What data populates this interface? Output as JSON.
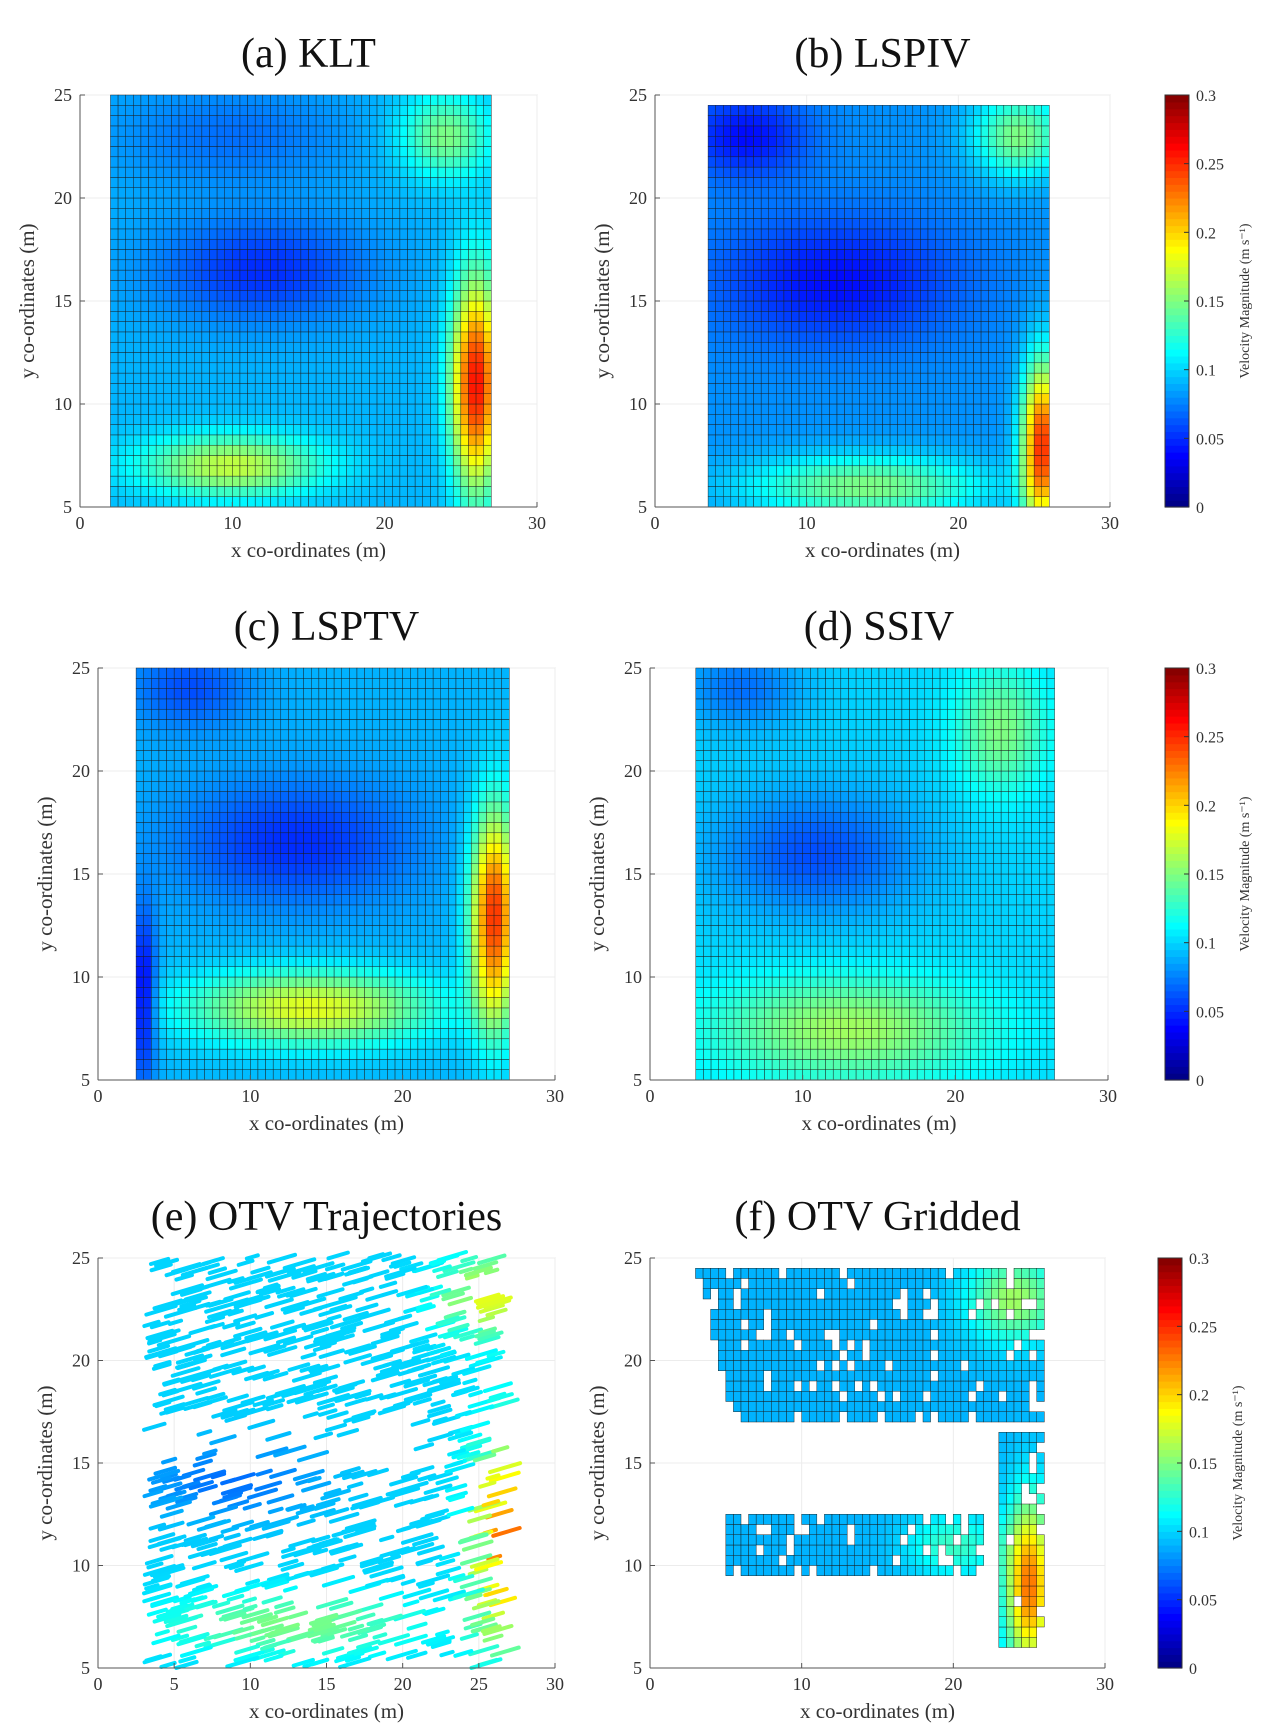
{
  "chart_data": {
    "type": "heatmap",
    "common": {
      "xlabel": "x co-ordinates (m)",
      "ylabel": "y co-ordinates (m)",
      "xlim": [
        0,
        30
      ],
      "ylim": [
        5,
        25
      ],
      "colorbar": {
        "label": "Velocity Magnitude (m s⁻¹)",
        "range": [
          0,
          0.3
        ],
        "ticks": [
          0,
          0.05,
          0.1,
          0.15,
          0.2,
          0.25,
          0.3
        ],
        "tick_labels": [
          "0",
          "0.05",
          "0.1",
          "0.15",
          "0.2",
          "0.25",
          "0.3"
        ],
        "colormap": "jet"
      }
    },
    "panels": [
      {
        "id": "a",
        "title": "(a) KLT",
        "type": "heatmap",
        "extent": {
          "x": [
            2,
            27
          ],
          "y": [
            5,
            25
          ]
        },
        "xticks": [
          0,
          10,
          20,
          30
        ],
        "xtick_labels": [
          "0",
          "10",
          "20",
          "30"
        ],
        "yticks": [
          5,
          10,
          15,
          20,
          25
        ],
        "ytick_labels": [
          "5",
          "10",
          "15",
          "20",
          "25"
        ],
        "base": 0.09,
        "features": [
          {
            "x": 12,
            "y": 16.5,
            "sx": 7,
            "sy": 2.5,
            "v": -0.04
          },
          {
            "x": 10,
            "y": 23,
            "sx": 8,
            "sy": 2.5,
            "v": -0.02
          },
          {
            "x": 26,
            "y": 11,
            "sx": 1.6,
            "sy": 5,
            "v": 0.17
          },
          {
            "x": 10,
            "y": 7,
            "sx": 6,
            "sy": 1.5,
            "v": 0.08
          },
          {
            "x": 24,
            "y": 23,
            "sx": 3,
            "sy": 2,
            "v": 0.06
          }
        ]
      },
      {
        "id": "b",
        "title": "(b) LSPIV",
        "type": "heatmap",
        "extent": {
          "x": [
            3.5,
            26
          ],
          "y": [
            5,
            24.3
          ]
        },
        "xticks": [
          0,
          10,
          20,
          30
        ],
        "xtick_labels": [
          "0",
          "10",
          "20",
          "30"
        ],
        "yticks": [
          5,
          10,
          15,
          20,
          25
        ],
        "ytick_labels": [
          "5",
          "10",
          "15",
          "20",
          "25"
        ],
        "base": 0.08,
        "features": [
          {
            "x": 12,
            "y": 16,
            "sx": 8,
            "sy": 3,
            "v": -0.04
          },
          {
            "x": 6,
            "y": 23,
            "sx": 4,
            "sy": 2,
            "v": -0.04
          },
          {
            "x": 25.5,
            "y": 8,
            "sx": 1.3,
            "sy": 4,
            "v": 0.17
          },
          {
            "x": 14,
            "y": 6,
            "sx": 8,
            "sy": 1.5,
            "v": 0.07
          },
          {
            "x": 24,
            "y": 23,
            "sx": 3,
            "sy": 2,
            "v": 0.07
          }
        ]
      },
      {
        "id": "c",
        "title": "(c) LSPTV",
        "type": "heatmap",
        "extent": {
          "x": [
            2.5,
            27
          ],
          "y": [
            5,
            25
          ]
        },
        "xticks": [
          0,
          10,
          20,
          30
        ],
        "xtick_labels": [
          "0",
          "10",
          "20",
          "30"
        ],
        "yticks": [
          5,
          10,
          15,
          20,
          25
        ],
        "ytick_labels": [
          "5",
          "10",
          "15",
          "20",
          "25"
        ],
        "base": 0.09,
        "features": [
          {
            "x": 13,
            "y": 16.5,
            "sx": 8,
            "sy": 3,
            "v": -0.04
          },
          {
            "x": 6,
            "y": 24,
            "sx": 4,
            "sy": 2,
            "v": -0.03
          },
          {
            "x": 26,
            "y": 13,
            "sx": 1.5,
            "sy": 5,
            "v": 0.16
          },
          {
            "x": 14,
            "y": 8.5,
            "sx": 8,
            "sy": 1.8,
            "v": 0.09
          },
          {
            "x": 3,
            "y": 9,
            "sx": 0.8,
            "sy": 4,
            "v": -0.06
          }
        ]
      },
      {
        "id": "d",
        "title": "(d) SSIV",
        "type": "heatmap",
        "extent": {
          "x": [
            3,
            26.5
          ],
          "y": [
            5,
            25
          ]
        },
        "xticks": [
          0,
          10,
          20,
          30
        ],
        "xtick_labels": [
          "0",
          "10",
          "20",
          "30"
        ],
        "yticks": [
          5,
          10,
          15,
          20,
          25
        ],
        "ytick_labels": [
          "5",
          "10",
          "15",
          "20",
          "25"
        ],
        "base": 0.1,
        "features": [
          {
            "x": 11,
            "y": 16,
            "sx": 7,
            "sy": 3,
            "v": -0.04
          },
          {
            "x": 6,
            "y": 24,
            "sx": 4,
            "sy": 2,
            "v": -0.03
          },
          {
            "x": 13,
            "y": 7.5,
            "sx": 9,
            "sy": 2.5,
            "v": 0.06
          },
          {
            "x": 23,
            "y": 22,
            "sx": 3,
            "sy": 3,
            "v": 0.05
          }
        ]
      },
      {
        "id": "e",
        "title": "(e) OTV Trajectories",
        "type": "trajectories",
        "extent": {
          "x": [
            3,
            27
          ],
          "y": [
            5,
            25
          ]
        },
        "xticks": [
          0,
          5,
          10,
          15,
          20,
          25,
          30
        ],
        "xtick_labels": [
          "0",
          "5",
          "10",
          "15",
          "20",
          "25",
          "30"
        ],
        "yticks": [
          5,
          10,
          15,
          20,
          25
        ],
        "ytick_labels": [
          "5",
          "10",
          "15",
          "20",
          "25"
        ],
        "base": 0.1,
        "features": [
          {
            "x": 26,
            "y": 11,
            "sx": 2,
            "sy": 5,
            "v": 0.13
          },
          {
            "x": 12,
            "y": 7,
            "sx": 8,
            "sy": 1.5,
            "v": 0.05
          },
          {
            "x": 8,
            "y": 14,
            "sx": 6,
            "sy": 2,
            "v": -0.03
          },
          {
            "x": 25,
            "y": 23,
            "sx": 3,
            "sy": 2,
            "v": 0.08
          }
        ]
      },
      {
        "id": "f",
        "title": "(f) OTV Gridded",
        "type": "heatmap_sparse",
        "extent": {
          "x": [
            3,
            26
          ],
          "y": [
            5,
            25
          ]
        },
        "xticks": [
          0,
          10,
          20,
          30
        ],
        "xtick_labels": [
          "0",
          "10",
          "20",
          "30"
        ],
        "yticks": [
          5,
          10,
          15,
          20,
          25
        ],
        "ytick_labels": [
          "5",
          "10",
          "15",
          "20",
          "25"
        ],
        "base": 0.09,
        "features": [
          {
            "x": 24,
            "y": 23,
            "sx": 3,
            "sy": 2,
            "v": 0.07
          },
          {
            "x": 25,
            "y": 9,
            "sx": 1.5,
            "sy": 4,
            "v": 0.14
          },
          {
            "x": 20,
            "y": 11,
            "sx": 3,
            "sy": 1.5,
            "v": 0.04
          }
        ]
      }
    ]
  }
}
